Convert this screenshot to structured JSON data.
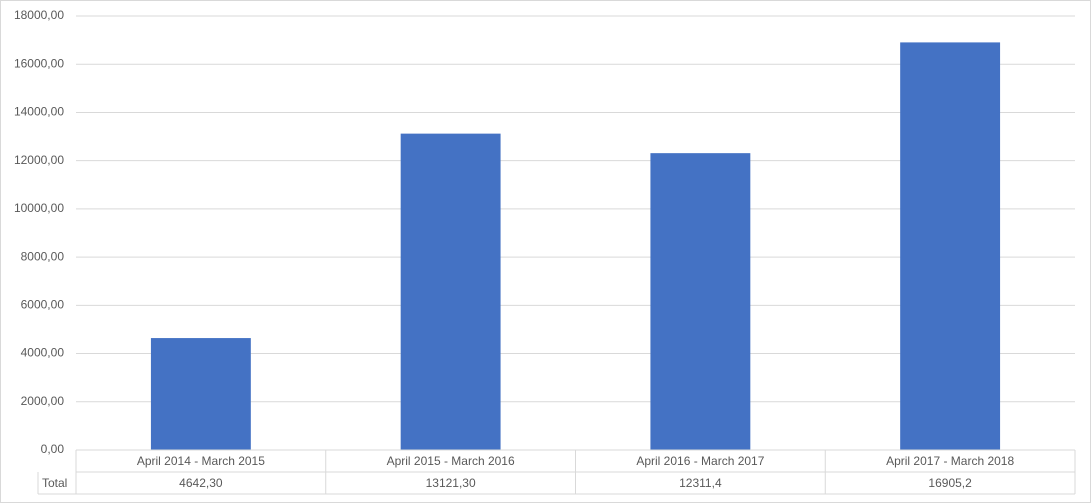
{
  "chart_data": {
    "type": "bar",
    "categories": [
      "April 2014 - March 2015",
      "April 2015 - March 2016",
      "April 2016 - March 2017",
      "April 2017 - March 2018"
    ],
    "series": [
      {
        "name": "Total",
        "color": "#4472c4",
        "values": [
          4642.3,
          13121.3,
          12311.4,
          16905.2
        ],
        "value_labels": [
          "4642,30",
          "13121,30",
          "12311,4",
          "16905,2"
        ]
      }
    ],
    "ylim": [
      0,
      18000
    ],
    "yticks": [
      {
        "value": 0,
        "label": "0,00"
      },
      {
        "value": 2000,
        "label": "2000,00"
      },
      {
        "value": 4000,
        "label": "4000,00"
      },
      {
        "value": 6000,
        "label": "6000,00"
      },
      {
        "value": 8000,
        "label": "8000,00"
      },
      {
        "value": 10000,
        "label": "10000,00"
      },
      {
        "value": 12000,
        "label": "12000,00"
      },
      {
        "value": 14000,
        "label": "14000,00"
      },
      {
        "value": 16000,
        "label": "16000,00"
      },
      {
        "value": 18000,
        "label": "18000,00"
      }
    ],
    "grid": true
  }
}
